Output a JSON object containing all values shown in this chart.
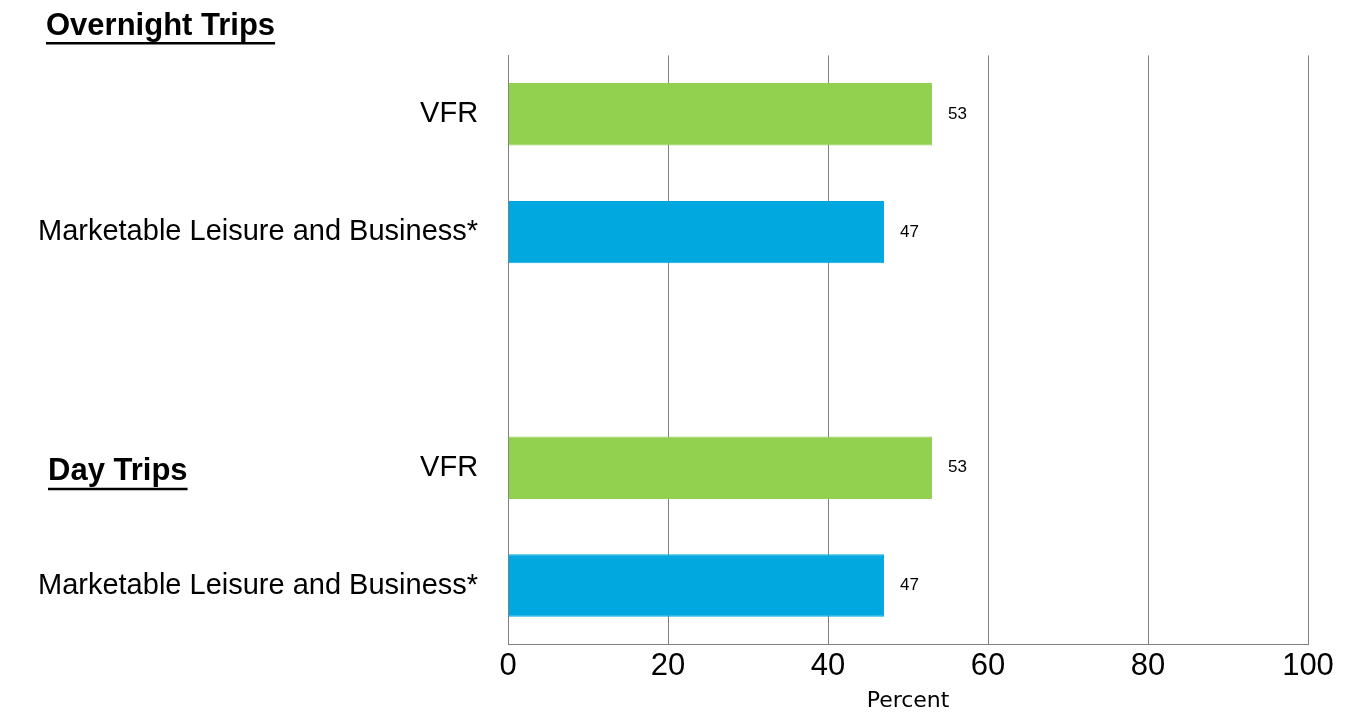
{
  "chart_data": {
    "type": "bar",
    "orientation": "horizontal",
    "categories": [
      "VFR",
      "Marketable Leisure and Business*",
      null,
      "VFR",
      "Marketable Leisure and Business*"
    ],
    "values": [
      53,
      47,
      null,
      53,
      47
    ],
    "colors": [
      "#92d050",
      "#00a8e0",
      "#00a8e0",
      "#92d050",
      "#00a8e0"
    ],
    "xlim": [
      0,
      100
    ],
    "xticks": [
      0,
      20,
      40,
      60,
      80,
      100
    ],
    "xlabel": "Percent",
    "grid": "x",
    "data_labels": true,
    "annotations": [
      "Overnight Trips",
      "Day Trips"
    ]
  }
}
